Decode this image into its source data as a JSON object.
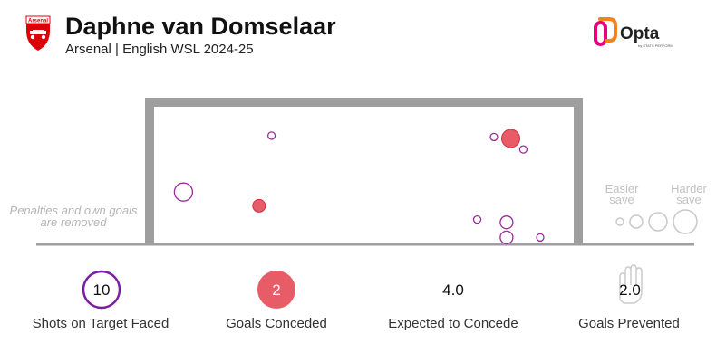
{
  "header": {
    "title": "Daphne van Domselaar",
    "subtitle": "Arsenal | English WSL 2024-25",
    "badge_text": "Arsenal"
  },
  "brand": {
    "name": "Opta",
    "sub": "by STATS PERFORM"
  },
  "note": {
    "line1": "Penalties and own goals",
    "line2": "are removed"
  },
  "legend": {
    "easier_line1": "Easier",
    "easier_line2": "save",
    "harder_line1": "Harder",
    "harder_line2": "save"
  },
  "colors": {
    "goal_frame": "#9e9e9e",
    "goal_fill": "#d32f3f",
    "goal_fill_light": "#e85c67",
    "save_stroke": "#9b2a9b",
    "accent_purple": "#7b1fa2",
    "legend_grey": "#c8c8c8",
    "opta_orange": "#f58220",
    "opta_pink": "#e6007e",
    "arsenal_red": "#db0007"
  },
  "chart_data": {
    "type": "scatter",
    "title": "Daphne van Domselaar",
    "subtitle": "Arsenal | English WSL 2024-25",
    "x_range": [
      0,
      1
    ],
    "y_range": [
      0,
      1
    ],
    "size_meaning": "larger circle = harder save",
    "series": [
      {
        "name": "Goals Conceded",
        "points": [
          {
            "x": 0.85,
            "y": 0.77,
            "size": 3
          },
          {
            "x": 0.25,
            "y": 0.28,
            "size": 2
          }
        ]
      },
      {
        "name": "Saves",
        "points": [
          {
            "x": 0.28,
            "y": 0.79,
            "size": 1
          },
          {
            "x": 0.81,
            "y": 0.78,
            "size": 1
          },
          {
            "x": 0.88,
            "y": 0.69,
            "size": 1
          },
          {
            "x": 0.07,
            "y": 0.38,
            "size": 3
          },
          {
            "x": 0.77,
            "y": 0.18,
            "size": 1
          },
          {
            "x": 0.84,
            "y": 0.16,
            "size": 2
          },
          {
            "x": 0.84,
            "y": 0.05,
            "size": 2
          },
          {
            "x": 0.92,
            "y": 0.05,
            "size": 1
          }
        ]
      }
    ],
    "legend_sizes": [
      1,
      2,
      3,
      4
    ]
  },
  "stats": [
    {
      "value": "10",
      "label": "Shots on Target Faced",
      "marker": "ring"
    },
    {
      "value": "2",
      "label": "Goals Conceded",
      "marker": "filled"
    },
    {
      "value": "4.0",
      "label": "Expected to Concede",
      "marker": "none"
    },
    {
      "value": "2.0",
      "label": "Goals Prevented",
      "marker": "glove"
    }
  ]
}
